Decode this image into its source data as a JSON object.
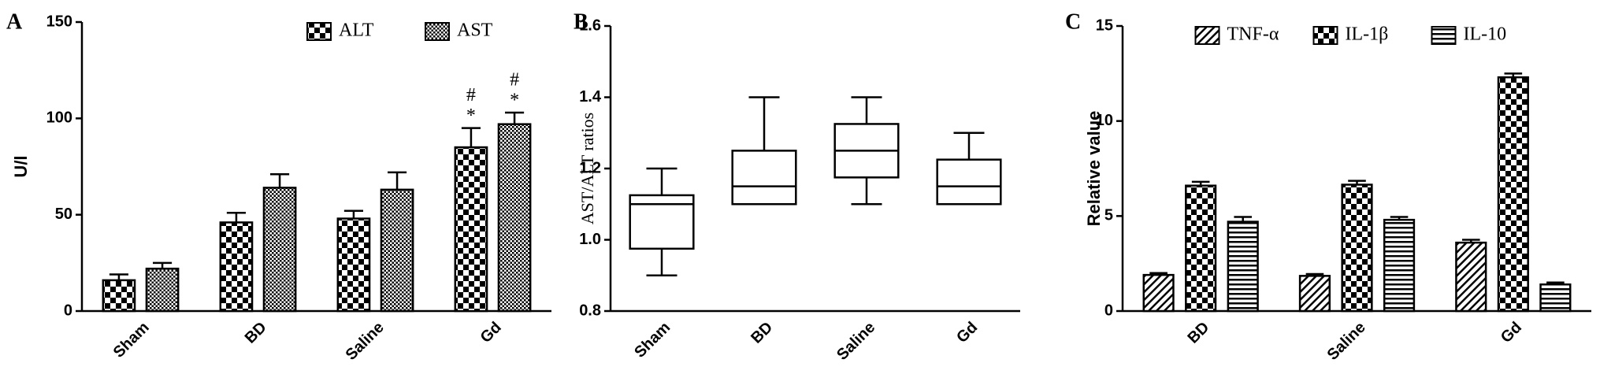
{
  "chart_data": [
    {
      "type": "bar",
      "panel": "A",
      "ylabel": "U/l",
      "categories": [
        "Sham",
        "BD",
        "Saline",
        "Gd"
      ],
      "series": [
        {
          "name": "ALT",
          "color": "#000000",
          "pattern": "checker",
          "values": [
            16,
            46,
            48,
            85
          ],
          "errors": [
            3,
            5,
            4,
            10
          ],
          "annotations": [
            null,
            null,
            null,
            [
              "#",
              "*"
            ]
          ]
        },
        {
          "name": "AST",
          "color": "#000000",
          "pattern": "fine",
          "values": [
            22,
            64,
            63,
            97
          ],
          "errors": [
            3,
            7,
            9,
            6
          ],
          "annotations": [
            null,
            null,
            null,
            [
              "#",
              "*"
            ]
          ]
        }
      ],
      "ylim": [
        0,
        150
      ],
      "yticks": [
        0,
        50,
        100,
        150
      ],
      "legend": "top-right"
    },
    {
      "type": "box",
      "panel": "B",
      "ylabel": "AST/ALT ratios",
      "categories": [
        "Sham",
        "BD",
        "Saline",
        "Gd"
      ],
      "min": [
        0.9,
        1.1,
        1.1,
        1.1
      ],
      "q1": [
        0.975,
        1.1,
        1.175,
        1.1
      ],
      "median": [
        1.1,
        1.15,
        1.25,
        1.15
      ],
      "q3": [
        1.125,
        1.25,
        1.325,
        1.225
      ],
      "max": [
        1.2,
        1.4,
        1.4,
        1.3
      ],
      "color": "#000000",
      "ylim": [
        0.8,
        1.6
      ],
      "yticks": [
        0.8,
        {
          "value": 1,
          "label": "1.0"
        },
        1.2,
        1.4,
        1.6
      ]
    },
    {
      "type": "bar",
      "panel": "C",
      "ylabel": "Relative value",
      "categories": [
        "BD",
        "Saline",
        "Gd"
      ],
      "series": [
        {
          "name": "TNF-α",
          "color": "#000000",
          "pattern": "diag",
          "values": [
            1.9,
            1.85,
            3.6
          ],
          "errors": [
            0.1,
            0.1,
            0.15
          ]
        },
        {
          "name": "IL-1β",
          "color": "#000000",
          "pattern": "checker",
          "values": [
            6.6,
            6.65,
            12.3
          ],
          "errors": [
            0.2,
            0.2,
            0.2
          ]
        },
        {
          "name": "IL-10",
          "color": "#000000",
          "pattern": "stripes",
          "values": [
            4.7,
            4.8,
            1.4
          ],
          "errors": [
            0.25,
            0.15,
            0.1
          ]
        }
      ],
      "ylim": [
        0,
        15
      ],
      "yticks": [
        0,
        5,
        10,
        15
      ],
      "legend": "top"
    }
  ]
}
